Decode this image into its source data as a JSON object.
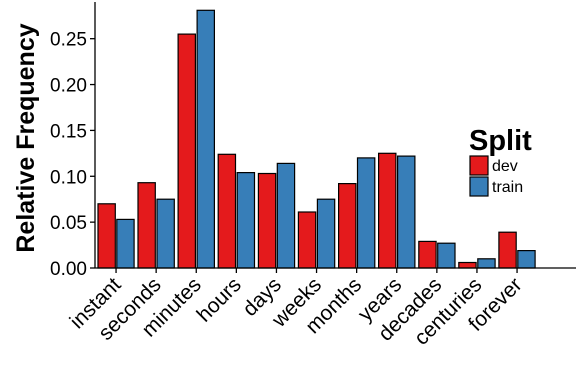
{
  "chart_data": {
    "type": "bar",
    "categories": [
      "instant",
      "seconds",
      "minutes",
      "hours",
      "days",
      "weeks",
      "months",
      "years",
      "decades",
      "centuries",
      "forever"
    ],
    "series": [
      {
        "name": "dev",
        "color": "#e41a1c",
        "values": [
          0.07,
          0.093,
          0.255,
          0.124,
          0.103,
          0.061,
          0.092,
          0.125,
          0.029,
          0.006,
          0.039
        ]
      },
      {
        "name": "train",
        "color": "#377eb8",
        "values": [
          0.053,
          0.075,
          0.281,
          0.104,
          0.114,
          0.075,
          0.12,
          0.122,
          0.027,
          0.01,
          0.019
        ]
      }
    ],
    "title": "",
    "xlabel": "",
    "ylabel": "Relative Frequency",
    "ylim": [
      0,
      0.29
    ],
    "yticks": [
      "0.00",
      "0.05",
      "0.10",
      "0.15",
      "0.20",
      "0.25"
    ],
    "grid": false,
    "legend": {
      "title": "Split",
      "position": "right"
    }
  }
}
